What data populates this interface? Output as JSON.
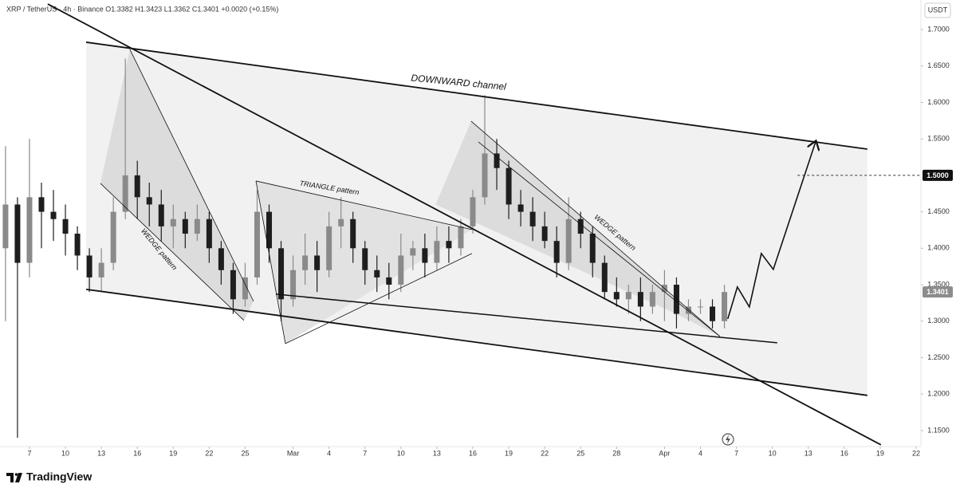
{
  "chart_data": {
    "type": "candlestick",
    "title": "XRP / TetherUS · 4h · Binance  O1.3382  H1.3423  L1.3362  C1.3401  +0.0020 (+0.15%)",
    "currency": "USDT",
    "brand": "TradingView",
    "up_color": "#8a8a8a",
    "down_color": "#1e1e1e",
    "grid": false,
    "xlim": [
      4.54,
      81.4
    ],
    "ylim": [
      1.128,
      1.7405
    ],
    "xticks": [
      7,
      10,
      13,
      16,
      19,
      22,
      25,
      {
        "value": 29,
        "label": "Mar"
      },
      {
        "value": 32,
        "label": "4"
      },
      {
        "value": 35,
        "label": "7"
      },
      {
        "value": 38,
        "label": "10"
      },
      {
        "value": 41,
        "label": "13"
      },
      {
        "value": 44,
        "label": "16"
      },
      {
        "value": 47,
        "label": "19"
      },
      {
        "value": 50,
        "label": "22"
      },
      {
        "value": 53,
        "label": "25"
      },
      {
        "value": 56,
        "label": "28"
      },
      {
        "value": 60,
        "label": "Apr"
      },
      {
        "value": 63,
        "label": "4"
      },
      {
        "value": 66,
        "label": "7"
      },
      {
        "value": 69,
        "label": "10"
      },
      {
        "value": 72,
        "label": "13"
      },
      {
        "value": 75,
        "label": "16"
      },
      {
        "value": 78,
        "label": "19"
      },
      {
        "value": 81,
        "label": "22"
      }
    ],
    "yticks": [
      {
        "value": 1.7,
        "label": "1.7000"
      },
      {
        "value": 1.65,
        "label": "1.6500"
      },
      {
        "value": 1.6,
        "label": "1.6000"
      },
      {
        "value": 1.55,
        "label": "1.5500"
      },
      {
        "value": 1.45,
        "label": "1.4500"
      },
      {
        "value": 1.4,
        "label": "1.4000"
      },
      {
        "value": 1.35,
        "label": "1.3500"
      },
      {
        "value": 1.3,
        "label": "1.3000"
      },
      {
        "value": 1.25,
        "label": "1.2500"
      },
      {
        "value": 1.2,
        "label": "1.2000"
      },
      {
        "value": 1.15,
        "label": "1.1500"
      }
    ],
    "price_labels": [
      {
        "value": 1.5,
        "label": "1.5000",
        "color": "#111111",
        "text_color": "#ffffff"
      },
      {
        "value": 1.3401,
        "label": "1.3401",
        "color": "#8c8c8c",
        "text_color": "#ffffff"
      }
    ],
    "dashed_level": {
      "value": 1.5,
      "start": 71.1
    },
    "x": [
      5,
      6,
      7,
      8,
      9,
      10,
      11,
      12,
      13,
      14,
      15,
      16,
      17,
      18,
      19,
      20,
      21,
      22,
      23,
      24,
      25,
      26,
      27,
      28,
      29,
      30,
      31,
      32,
      33,
      34,
      35,
      36,
      37,
      38,
      39,
      40,
      41,
      42,
      43,
      44,
      45,
      46,
      47,
      48,
      49,
      50,
      51,
      52,
      53,
      54,
      55,
      56,
      57,
      58,
      59,
      60,
      61,
      62,
      63,
      64,
      65
    ],
    "open": [
      1.4,
      1.46,
      1.38,
      1.47,
      1.45,
      1.44,
      1.42,
      1.39,
      1.36,
      1.38,
      1.45,
      1.5,
      1.47,
      1.46,
      1.43,
      1.44,
      1.42,
      1.44,
      1.4,
      1.37,
      1.33,
      1.36,
      1.45,
      1.4,
      1.33,
      1.37,
      1.39,
      1.37,
      1.43,
      1.44,
      1.4,
      1.37,
      1.36,
      1.35,
      1.39,
      1.4,
      1.38,
      1.41,
      1.4,
      1.43,
      1.47,
      1.53,
      1.51,
      1.46,
      1.45,
      1.43,
      1.41,
      1.38,
      1.44,
      1.42,
      1.38,
      1.34,
      1.33,
      1.34,
      1.32,
      1.34,
      1.35,
      1.31,
      1.32,
      1.32,
      1.3
    ],
    "high": [
      1.54,
      1.47,
      1.55,
      1.49,
      1.48,
      1.46,
      1.43,
      1.4,
      1.4,
      1.47,
      1.66,
      1.52,
      1.49,
      1.48,
      1.46,
      1.45,
      1.46,
      1.45,
      1.41,
      1.38,
      1.38,
      1.48,
      1.46,
      1.41,
      1.39,
      1.42,
      1.41,
      1.45,
      1.47,
      1.45,
      1.41,
      1.39,
      1.38,
      1.42,
      1.41,
      1.42,
      1.43,
      1.43,
      1.44,
      1.48,
      1.61,
      1.55,
      1.52,
      1.48,
      1.47,
      1.45,
      1.43,
      1.47,
      1.45,
      1.43,
      1.39,
      1.36,
      1.35,
      1.36,
      1.35,
      1.37,
      1.36,
      1.33,
      1.33,
      1.33,
      1.35
    ],
    "low": [
      1.3,
      1.14,
      1.36,
      1.4,
      1.41,
      1.39,
      1.37,
      1.34,
      1.34,
      1.37,
      1.44,
      1.44,
      1.43,
      1.41,
      1.4,
      1.4,
      1.41,
      1.38,
      1.35,
      1.31,
      1.32,
      1.35,
      1.38,
      1.3,
      1.32,
      1.35,
      1.34,
      1.36,
      1.4,
      1.38,
      1.35,
      1.34,
      1.33,
      1.34,
      1.37,
      1.36,
      1.37,
      1.38,
      1.39,
      1.42,
      1.46,
      1.48,
      1.44,
      1.43,
      1.41,
      1.4,
      1.36,
      1.37,
      1.4,
      1.36,
      1.33,
      1.32,
      1.31,
      1.3,
      1.31,
      1.3,
      1.29,
      1.3,
      1.31,
      1.29,
      1.29
    ],
    "close": [
      1.46,
      1.38,
      1.47,
      1.45,
      1.44,
      1.42,
      1.39,
      1.36,
      1.38,
      1.45,
      1.5,
      1.47,
      1.46,
      1.43,
      1.44,
      1.42,
      1.44,
      1.4,
      1.37,
      1.33,
      1.36,
      1.45,
      1.4,
      1.33,
      1.37,
      1.39,
      1.37,
      1.43,
      1.44,
      1.4,
      1.37,
      1.36,
      1.35,
      1.39,
      1.4,
      1.38,
      1.41,
      1.4,
      1.43,
      1.47,
      1.53,
      1.51,
      1.46,
      1.45,
      1.43,
      1.41,
      1.38,
      1.44,
      1.42,
      1.38,
      1.34,
      1.33,
      1.34,
      1.32,
      1.34,
      1.35,
      1.31,
      1.32,
      1.32,
      1.3,
      1.34
    ],
    "zones": [
      {
        "color": "#f1f1f1",
        "points": [
          [
            11.73,
            1.6826
          ],
          [
            76.93,
            1.536
          ],
          [
            76.93,
            1.1982
          ],
          [
            11.73,
            1.3436
          ]
        ]
      },
      {
        "color": "#dcdcdc",
        "points": [
          [
            15.38,
            1.6727
          ],
          [
            25.7,
            1.3272
          ],
          [
            24.9,
            1.301
          ],
          [
            12.92,
            1.489
          ]
        ]
      },
      {
        "color": "#e2e2e2",
        "points": [
          [
            25.9,
            1.4923
          ],
          [
            43.93,
            1.4256
          ],
          [
            28.36,
            1.2692
          ]
        ]
      },
      {
        "color": "#dcdcdc",
        "points": [
          [
            40.9,
            1.46
          ],
          [
            43.86,
            1.5743
          ],
          [
            64.62,
            1.2791
          ],
          [
            61.0,
            1.31
          ]
        ]
      }
    ],
    "trendlines": [
      {
        "weight": 1.8,
        "points": [
          [
            11.73,
            1.6826
          ],
          [
            76.93,
            1.536
          ]
        ]
      },
      {
        "weight": 1.8,
        "points": [
          [
            11.73,
            1.3436
          ],
          [
            76.93,
            1.1982
          ]
        ]
      },
      {
        "weight": 1.8,
        "points": [
          [
            8.53,
            1.735
          ],
          [
            78.06,
            1.1304
          ]
        ]
      },
      {
        "weight": 1.5,
        "points": [
          [
            27.56,
            1.337
          ],
          [
            69.41,
            1.2703
          ]
        ]
      },
      {
        "weight": 0.8,
        "points": [
          [
            15.38,
            1.6727
          ],
          [
            25.7,
            1.3272
          ]
        ]
      },
      {
        "weight": 0.8,
        "points": [
          [
            12.92,
            1.489
          ],
          [
            24.9,
            1.301
          ]
        ]
      },
      {
        "weight": 0.8,
        "points": [
          [
            25.9,
            1.4923
          ],
          [
            43.93,
            1.4256
          ]
        ]
      },
      {
        "weight": 0.8,
        "points": [
          [
            28.36,
            1.2692
          ],
          [
            43.93,
            1.3928
          ]
        ]
      },
      {
        "weight": 0.8,
        "points": [
          [
            25.9,
            1.4923
          ],
          [
            28.36,
            1.2692
          ]
        ]
      },
      {
        "weight": 0.8,
        "points": [
          [
            43.86,
            1.5743
          ],
          [
            64.62,
            1.2791
          ]
        ]
      },
      {
        "weight": 0.8,
        "points": [
          [
            44.46,
            1.5459
          ],
          [
            64.62,
            1.2791
          ]
        ]
      },
      {
        "weight": 1.6,
        "arrow": true,
        "points": [
          [
            65.28,
            1.3031
          ],
          [
            66.08,
            1.3469
          ],
          [
            67.08,
            1.3195
          ],
          [
            68.08,
            1.3928
          ],
          [
            69.08,
            1.371
          ],
          [
            72.61,
            1.5459
          ]
        ]
      }
    ],
    "annotations": [
      "DOWNWARD channel",
      "TRIANGLE pattern",
      "WEDGE pattern",
      "WEDGE pattern"
    ]
  }
}
